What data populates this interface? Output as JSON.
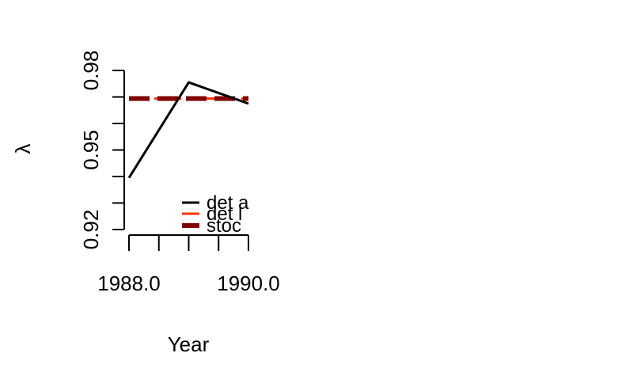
{
  "chart_data": {
    "type": "line",
    "title": "",
    "xlabel": "Year",
    "ylabel": "λ",
    "xlim": [
      1988,
      1990
    ],
    "ylim": [
      0.92,
      0.98
    ],
    "x_ticks": [
      1988,
      1988.5,
      1989,
      1989.5,
      1990
    ],
    "x_tick_labels": [
      "1988.0",
      "",
      "",
      "",
      "1990.0"
    ],
    "y_ticks": [
      0.92,
      0.93,
      0.94,
      0.95,
      0.96,
      0.97,
      0.98
    ],
    "y_tick_labels": [
      "0.92",
      "",
      "",
      "0.95",
      "",
      "",
      "0.98"
    ],
    "grid": false,
    "legend_position": "bottom-right",
    "series": [
      {
        "name": "det a",
        "color": "#000000",
        "dash": "solid",
        "x": [
          1988,
          1989,
          1990
        ],
        "y": [
          0.9395,
          0.9755,
          0.9675
        ]
      },
      {
        "name": "det l",
        "color": "#ff3300",
        "dash": "dashed",
        "x": [
          1988,
          1989,
          1990
        ],
        "y": [
          0.9694,
          0.9694,
          0.9694
        ]
      },
      {
        "name": "stoc",
        "color": "#800000",
        "dash": "dashed-thick",
        "x": [
          1988,
          1989,
          1990
        ],
        "y": [
          0.9694,
          0.9694,
          0.9694
        ]
      }
    ]
  }
}
